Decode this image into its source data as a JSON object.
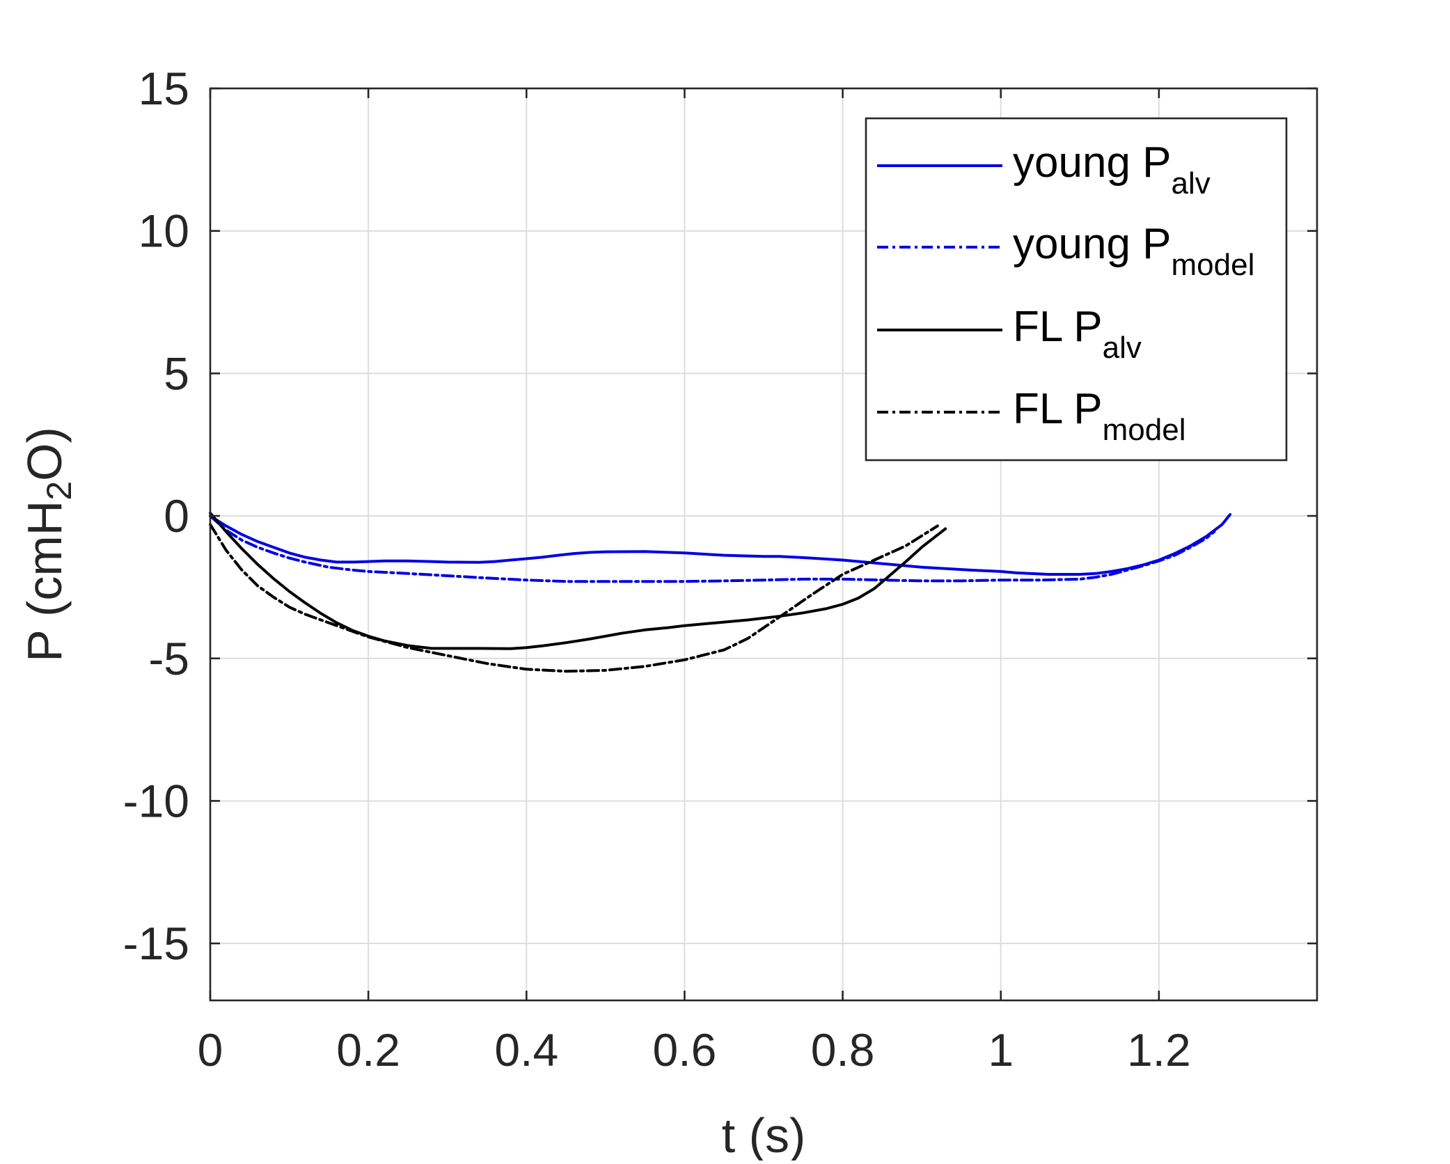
{
  "chart_data": {
    "type": "line",
    "xlabel": "t (s)",
    "ylabel": {
      "prefix": "P (cmH",
      "sub": "2",
      "suffix": "O)"
    },
    "xlim": [
      0,
      1.4
    ],
    "ylim": [
      -17,
      15
    ],
    "xticks": [
      0,
      0.2,
      0.4,
      0.6,
      0.8,
      1,
      1.2
    ],
    "xtick_labels": [
      "0",
      "0.2",
      "0.4",
      "0.6",
      "0.8",
      "1",
      "1.2"
    ],
    "yticks": [
      15,
      10,
      5,
      0,
      -5,
      -10,
      -15
    ],
    "ytick_labels": [
      "15",
      "10",
      "5",
      "0",
      "-5",
      "-10",
      "-15"
    ],
    "grid": true,
    "legend_position": "top-right",
    "series": [
      {
        "name": "young P",
        "name_sub": "alv",
        "color": "#0000e6",
        "dash": "solid",
        "x": [
          0,
          0.02,
          0.04,
          0.06,
          0.08,
          0.1,
          0.12,
          0.14,
          0.16,
          0.18,
          0.2,
          0.22,
          0.25,
          0.28,
          0.3,
          0.34,
          0.36,
          0.38,
          0.4,
          0.42,
          0.44,
          0.46,
          0.48,
          0.5,
          0.55,
          0.6,
          0.65,
          0.7,
          0.72,
          0.76,
          0.8,
          0.84,
          0.9,
          0.96,
          1.0,
          1.02,
          1.06,
          1.1,
          1.12,
          1.14,
          1.16,
          1.18,
          1.2,
          1.22,
          1.24,
          1.26,
          1.28,
          1.29
        ],
        "y": [
          0,
          -0.35,
          -0.65,
          -0.9,
          -1.1,
          -1.3,
          -1.45,
          -1.55,
          -1.62,
          -1.62,
          -1.6,
          -1.58,
          -1.58,
          -1.6,
          -1.62,
          -1.63,
          -1.6,
          -1.55,
          -1.5,
          -1.45,
          -1.38,
          -1.32,
          -1.28,
          -1.26,
          -1.25,
          -1.3,
          -1.38,
          -1.42,
          -1.42,
          -1.48,
          -1.55,
          -1.65,
          -1.8,
          -1.9,
          -1.95,
          -2.0,
          -2.05,
          -2.05,
          -2.02,
          -1.95,
          -1.85,
          -1.72,
          -1.55,
          -1.32,
          -1.05,
          -0.72,
          -0.3,
          0.05
        ]
      },
      {
        "name": "young P",
        "name_sub": "model",
        "color": "#0000e6",
        "dash": "dashdot",
        "x": [
          0,
          0.02,
          0.04,
          0.06,
          0.08,
          0.1,
          0.12,
          0.15,
          0.18,
          0.2,
          0.25,
          0.3,
          0.35,
          0.4,
          0.45,
          0.5,
          0.55,
          0.6,
          0.65,
          0.7,
          0.75,
          0.8,
          0.85,
          0.9,
          0.95,
          1.0,
          1.05,
          1.1,
          1.12,
          1.14,
          1.16,
          1.18,
          1.2,
          1.22,
          1.24,
          1.26,
          1.27
        ],
        "y": [
          0,
          -0.5,
          -0.85,
          -1.1,
          -1.3,
          -1.48,
          -1.62,
          -1.8,
          -1.9,
          -1.95,
          -2.02,
          -2.1,
          -2.18,
          -2.25,
          -2.3,
          -2.3,
          -2.3,
          -2.3,
          -2.28,
          -2.25,
          -2.22,
          -2.22,
          -2.25,
          -2.28,
          -2.28,
          -2.25,
          -2.25,
          -2.22,
          -2.15,
          -2.05,
          -1.9,
          -1.75,
          -1.58,
          -1.38,
          -1.1,
          -0.78,
          -0.55
        ]
      },
      {
        "name": "FL P",
        "name_sub": "alv",
        "color": "#000000",
        "dash": "solid",
        "x": [
          0,
          0.02,
          0.04,
          0.06,
          0.08,
          0.1,
          0.12,
          0.14,
          0.16,
          0.18,
          0.2,
          0.22,
          0.25,
          0.28,
          0.3,
          0.34,
          0.38,
          0.4,
          0.42,
          0.45,
          0.48,
          0.5,
          0.52,
          0.55,
          0.58,
          0.6,
          0.64,
          0.68,
          0.72,
          0.75,
          0.78,
          0.8,
          0.82,
          0.84,
          0.86,
          0.88,
          0.9,
          0.93
        ],
        "y": [
          0.1,
          -0.55,
          -1.15,
          -1.7,
          -2.2,
          -2.65,
          -3.05,
          -3.42,
          -3.75,
          -4.02,
          -4.22,
          -4.38,
          -4.55,
          -4.65,
          -4.65,
          -4.65,
          -4.66,
          -4.62,
          -4.56,
          -4.45,
          -4.32,
          -4.22,
          -4.12,
          -4.0,
          -3.92,
          -3.85,
          -3.75,
          -3.65,
          -3.52,
          -3.4,
          -3.25,
          -3.1,
          -2.88,
          -2.55,
          -2.08,
          -1.6,
          -1.1,
          -0.45
        ]
      },
      {
        "name": "FL P",
        "name_sub": "model",
        "color": "#000000",
        "dash": "dashdot",
        "x": [
          0,
          0.02,
          0.04,
          0.06,
          0.08,
          0.1,
          0.12,
          0.15,
          0.18,
          0.2,
          0.25,
          0.3,
          0.35,
          0.4,
          0.45,
          0.5,
          0.55,
          0.6,
          0.65,
          0.68,
          0.72,
          0.76,
          0.8,
          0.84,
          0.88,
          0.9,
          0.92
        ],
        "y": [
          -0.3,
          -1.2,
          -1.9,
          -2.45,
          -2.85,
          -3.2,
          -3.45,
          -3.75,
          -4.05,
          -4.25,
          -4.62,
          -4.9,
          -5.18,
          -5.38,
          -5.45,
          -5.42,
          -5.28,
          -5.05,
          -4.7,
          -4.3,
          -3.55,
          -2.78,
          -2.05,
          -1.55,
          -1.05,
          -0.7,
          -0.35
        ]
      }
    ]
  }
}
